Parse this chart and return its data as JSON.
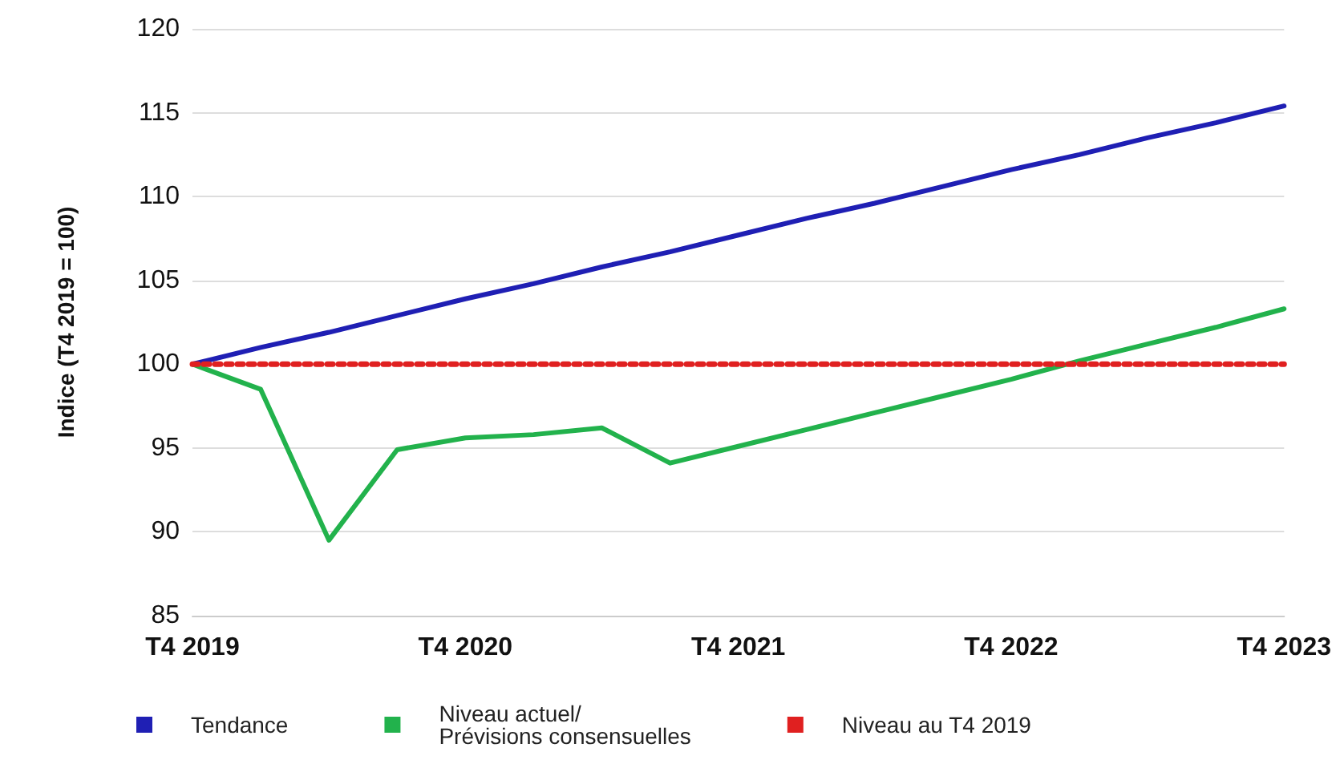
{
  "chart_data": {
    "type": "line",
    "ylabel": "Indice (T4 2019 = 100)",
    "categories": [
      "T4 2019",
      null,
      null,
      null,
      "T4 2020",
      null,
      null,
      null,
      "T4 2021",
      null,
      null,
      null,
      "T4 2022",
      null,
      null,
      null,
      "T4 2023"
    ],
    "series": [
      {
        "name": "Tendance",
        "color": "#1f1fb4",
        "line_style": "solid",
        "values": [
          100,
          101.0,
          101.9,
          102.9,
          103.9,
          104.8,
          105.8,
          106.7,
          107.7,
          108.7,
          109.6,
          110.6,
          111.6,
          112.5,
          113.5,
          114.4,
          115.4
        ]
      },
      {
        "name": "Niveau actuel/\nPrévisions consensuelles",
        "color": "#22b24c",
        "line_style": "solid",
        "values": [
          100,
          98.5,
          89.5,
          94.9,
          95.6,
          95.8,
          96.2,
          94.1,
          95.1,
          96.1,
          97.1,
          98.1,
          99.1,
          100.2,
          101.2,
          102.2,
          103.3
        ]
      },
      {
        "name": "Niveau au T4 2019",
        "color": "#e02020",
        "line_style": "dotted",
        "values": [
          100,
          100,
          100,
          100,
          100,
          100,
          100,
          100,
          100,
          100,
          100,
          100,
          100,
          100,
          100,
          100,
          100
        ]
      }
    ],
    "ylim": [
      85,
      120
    ],
    "yticks": [
      85,
      90,
      95,
      100,
      105,
      110,
      115,
      120
    ],
    "grid": "y",
    "legend": "bottom",
    "marker": "none"
  }
}
